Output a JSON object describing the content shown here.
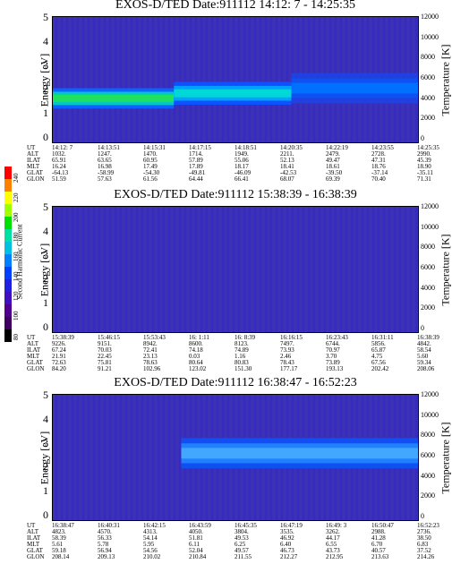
{
  "colorbar": {
    "label": "Second Harmonic Current",
    "ticks": [
      "240",
      "220",
      "200",
      "180",
      "160",
      "140",
      "120",
      "100",
      "80"
    ],
    "colors": [
      "#ff0000",
      "#ff8000",
      "#ffff00",
      "#a0ff00",
      "#00e000",
      "#00e0a0",
      "#00c0e0",
      "#0080ff",
      "#0040ff",
      "#2020e0",
      "#4010c0",
      "#500090",
      "#400060",
      "#000000"
    ]
  },
  "panels": [
    {
      "title": "EXOS-D/TED   Date:911112  14:12: 7 - 14:25:35",
      "ylabel": "Energy [eV]",
      "y2label": "Temperature [K]",
      "yticks": [
        "5",
        "4",
        "3",
        "2",
        "1",
        "0"
      ],
      "y2ticks": [
        "12000",
        "10000",
        "8000",
        "6000",
        "4000",
        "2000",
        "0"
      ],
      "rows": [
        {
          "label": "UT",
          "values": [
            "14:12: 7",
            "14:13:51",
            "14:15:31",
            "14:17:15",
            "14:18:51",
            "14:20:35",
            "14:22:19",
            "14:23:55",
            "14:25:35"
          ]
        },
        {
          "label": "ALT",
          "values": [
            "1032.",
            "1247.",
            "1470.",
            "1714.",
            "1949.",
            "2211.",
            "2479.",
            "2728.",
            "2990."
          ]
        },
        {
          "label": "ILAT",
          "values": [
            "65.91",
            "63.65",
            "60.95",
            "57.89",
            "55.06",
            "52.13",
            "49.47",
            "47.31",
            "45.39"
          ]
        },
        {
          "label": "MLT",
          "values": [
            "16.24",
            "16.98",
            "17.49",
            "17.89",
            "18.17",
            "18.41",
            "18.61",
            "18.76",
            "18.90"
          ]
        },
        {
          "label": "GLAT",
          "values": [
            "-64.13",
            "-58.99",
            "-54.30",
            "-49.81",
            "-46.09",
            "-42.53",
            "-39.50",
            "-37.14",
            "-35.11"
          ]
        },
        {
          "label": "GLON",
          "values": [
            "51.59",
            "57.63",
            "61.56",
            "64.44",
            "66.41",
            "68.07",
            "69.39",
            "70.40",
            "71.31"
          ]
        }
      ]
    },
    {
      "title": "EXOS-D/TED   Date:911112  15:38:39 - 16:38:39",
      "ylabel": "Energy [eV]",
      "y2label": "Temperature [K]",
      "yticks": [
        "5",
        "4",
        "3",
        "2",
        "1",
        "0"
      ],
      "y2ticks": [
        "12000",
        "10000",
        "8000",
        "6000",
        "4000",
        "2000",
        "0"
      ],
      "rows": [
        {
          "label": "UT",
          "values": [
            "15:38:39",
            "15:46:15",
            "15:53:43",
            "16: 1:11",
            "16: 8:39",
            "16:16:15",
            "16:23:43",
            "16:31:11",
            "16:38:39"
          ]
        },
        {
          "label": "ALT",
          "values": [
            "9226.",
            "9151.",
            "8942.",
            "8600.",
            "8123.",
            "7497.",
            "6744.",
            "5856.",
            "4842."
          ]
        },
        {
          "label": "ILAT",
          "values": [
            "67.24",
            "70.03",
            "72.41",
            "74.18",
            "74.89",
            "73.93",
            "70.97",
            "65.87",
            "58.54"
          ]
        },
        {
          "label": "MLT",
          "values": [
            "21.91",
            "22.45",
            "23.13",
            "0.03",
            "1.16",
            "2.46",
            "3.70",
            "4.75",
            "5.60"
          ]
        },
        {
          "label": "GLAT",
          "values": [
            "72.63",
            "75.81",
            "78.63",
            "80.64",
            "80.83",
            "78.43",
            "73.89",
            "67.56",
            "59.34"
          ]
        },
        {
          "label": "GLON",
          "values": [
            "84.20",
            "91.21",
            "102.96",
            "123.02",
            "151.30",
            "177.17",
            "193.13",
            "202.42",
            "208.06"
          ]
        }
      ]
    },
    {
      "title": "EXOS-D/TED   Date:911112  16:38:47 - 16:52:23",
      "ylabel": "Energy [eV]",
      "y2label": "Temperature [K]",
      "yticks": [
        "5",
        "4",
        "3",
        "2",
        "1",
        "0"
      ],
      "y2ticks": [
        "12000",
        "10000",
        "8000",
        "6000",
        "4000",
        "2000",
        "0"
      ],
      "rows": [
        {
          "label": "UT",
          "values": [
            "16:38:47",
            "16:40:31",
            "16:42:15",
            "16:43:59",
            "16:45:35",
            "16:47:19",
            "16:49: 3",
            "16:50:47",
            "16:52:23"
          ]
        },
        {
          "label": "ALT",
          "values": [
            "4823.",
            "4570.",
            "4313.",
            "4050.",
            "3804.",
            "3535.",
            "3262.",
            "2988.",
            "2736."
          ]
        },
        {
          "label": "ILAT",
          "values": [
            "58.39",
            "56.33",
            "54.14",
            "51.81",
            "49.53",
            "46.92",
            "44.17",
            "41.28",
            "38.50"
          ]
        },
        {
          "label": "MLT",
          "values": [
            "5.61",
            "5.78",
            "5.95",
            "6.11",
            "6.25",
            "6.40",
            "6.55",
            "6.70",
            "6.83"
          ]
        },
        {
          "label": "GLAT",
          "values": [
            "59.18",
            "56.94",
            "54.56",
            "52.04",
            "49.57",
            "46.73",
            "43.73",
            "40.57",
            "37.52"
          ]
        },
        {
          "label": "GLON",
          "values": [
            "208.14",
            "209.13",
            "210.02",
            "210.84",
            "211.55",
            "212.27",
            "212.95",
            "213.63",
            "214.26"
          ]
        }
      ]
    }
  ],
  "chart_data": [
    {
      "type": "heatmap",
      "title": "EXOS-D/TED   Date:911112  14:12: 7 - 14:25:35",
      "xlabel": "UT",
      "ylabel": "Energy [eV]",
      "y2label": "Temperature [K]",
      "x": [
        "14:12: 7",
        "14:13:51",
        "14:15:31",
        "14:17:15",
        "14:18:51",
        "14:20:35",
        "14:22:19",
        "14:23:55",
        "14:25:35"
      ],
      "ylim": [
        0,
        5
      ],
      "y2lim": [
        0,
        12000
      ],
      "bands": [
        {
          "xrange": [
            0,
            0.33
          ],
          "energy_center": 1.8,
          "width": 0.8,
          "level": "green"
        },
        {
          "xrange": [
            0.33,
            0.65
          ],
          "energy_center": 2.0,
          "width": 0.9,
          "level": "cyan"
        },
        {
          "xrange": [
            0.65,
            1.0
          ],
          "energy_center": 2.2,
          "width": 1.2,
          "level": "blue"
        }
      ]
    },
    {
      "type": "heatmap",
      "title": "EXOS-D/TED   Date:911112  15:38:39 - 16:38:39",
      "xlabel": "UT",
      "ylabel": "Energy [eV]",
      "y2label": "Temperature [K]",
      "x": [
        "15:38:39",
        "15:46:15",
        "15:53:43",
        "16: 1:11",
        "16: 8:39",
        "16:16:15",
        "16:23:43",
        "16:31:11",
        "16:38:39"
      ],
      "ylim": [
        0,
        5
      ],
      "y2lim": [
        0,
        12000
      ],
      "bands": []
    },
    {
      "type": "heatmap",
      "title": "EXOS-D/TED   Date:911112  16:38:47 - 16:52:23",
      "xlabel": "UT",
      "ylabel": "Energy [eV]",
      "y2label": "Temperature [K]",
      "x": [
        "16:38:47",
        "16:40:31",
        "16:42:15",
        "16:43:59",
        "16:45:35",
        "16:47:19",
        "16:49: 3",
        "16:50:47",
        "16:52:23"
      ],
      "ylim": [
        0,
        5
      ],
      "y2lim": [
        0,
        12000
      ],
      "bands": [
        {
          "xrange": [
            0.35,
            1.0
          ],
          "energy_center": 2.7,
          "width": 1.2,
          "level": "light-blue"
        }
      ]
    }
  ]
}
